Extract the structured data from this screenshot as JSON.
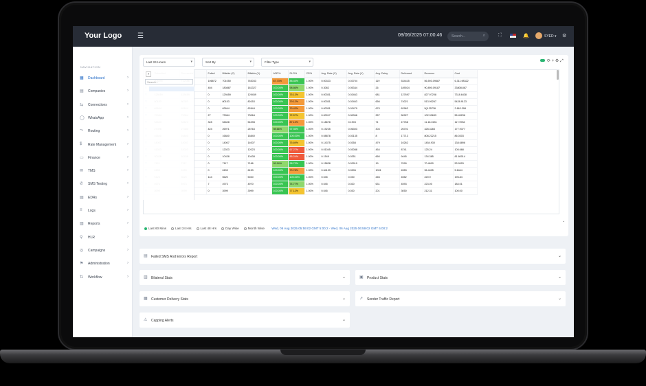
{
  "topbar": {
    "logo": "Your Logo",
    "datetime": "08/06/2025 07:00:46",
    "search_placeholder": "Search...",
    "user": "SYED"
  },
  "sidebar": {
    "heading": "NAVIGATION",
    "items": [
      {
        "label": "Dashboard",
        "icon": "dashboard-icon",
        "active": true
      },
      {
        "label": "Companies",
        "icon": "building-icon"
      },
      {
        "label": "Connections",
        "icon": "link-icon"
      },
      {
        "label": "WhatsApp",
        "icon": "chat-icon"
      },
      {
        "label": "Routing",
        "icon": "route-icon"
      },
      {
        "label": "Rate Management",
        "icon": "rate-icon"
      },
      {
        "label": "Finance",
        "icon": "finance-icon"
      },
      {
        "label": "TMS",
        "icon": "tms-icon"
      },
      {
        "label": "SMS Testing",
        "icon": "sms-icon"
      },
      {
        "label": "EDRs",
        "icon": "edr-icon"
      },
      {
        "label": "Logs",
        "icon": "log-icon"
      },
      {
        "label": "Reports",
        "icon": "report-icon"
      },
      {
        "label": "HLR",
        "icon": "hlr-icon"
      },
      {
        "label": "Campaigns",
        "icon": "campaign-icon"
      },
      {
        "label": "Administration",
        "icon": "admin-icon"
      },
      {
        "label": "Workflow",
        "icon": "workflow-icon"
      }
    ]
  },
  "filters": {
    "period": "Last 24 Hours",
    "sort": "Sort By",
    "type": "Filter Type"
  },
  "table": {
    "headers": [
      "",
      "Submitted",
      "Successful",
      "Failed",
      "Billable (C)",
      "Billable (V)",
      "ASR%",
      "DLR%",
      "CR%",
      "Avg. Rate (C)",
      "Avg. Rate (V)",
      "Avg. Delay",
      "Delivered",
      "Revenue",
      "Cost"
    ],
    "rows": [
      [
        "▽",
        "806890",
        "712456",
        "106872",
        "701050",
        "763033",
        "87.73%",
        "88.45%",
        "1.00%",
        "0.00323",
        "0.03704",
        "119",
        "534415",
        "56,593.09687",
        "6,311.98322"
      ],
      [
        "▽",
        "187717",
        "181717",
        "404",
        "180887",
        "181327",
        "100.00%",
        "98.86%",
        "1.00%",
        "0.3082",
        "0.05344",
        "26",
        "189024",
        "90,890.09187",
        "33808.867"
      ],
      [
        "▽",
        "129459",
        "129459",
        "0",
        "129459",
        "129459",
        "100.00%",
        "75.13%",
        "1.00%",
        "0.00301",
        "0.03463",
        "681",
        "127697",
        "827.97208",
        "7318.6438"
      ],
      [
        "▽",
        "80153",
        "80353",
        "0",
        "80153",
        "80153",
        "100.00%",
        "79.12%",
        "1.00%",
        "0.00301",
        "0.03463",
        "656",
        "74021",
        "513.90267",
        "5428.9123"
      ],
      [
        "▽",
        "62644",
        "62644",
        "0",
        "62644",
        "62644",
        "100.00%",
        "79.43%",
        "1.00%",
        "0.00301",
        "0.03479",
        "670",
        "62963",
        "5(9.25736",
        "2.66.1398"
      ],
      [
        "▽",
        "73064",
        "73064",
        "27",
        "73064",
        "73064",
        "100.00%",
        "72.57%",
        "1.00%",
        "0.00917",
        "0.00066",
        "257",
        "50927",
        "102.33633",
        "55.45236"
      ],
      [
        "▽",
        "54683",
        "54623",
        "345",
        "54628",
        "54298",
        "100.00%",
        "87.13%",
        "1.00%",
        "0.18678",
        "0.1903",
        "71",
        "47768",
        "11.18.0151",
        "117.9934"
      ],
      [
        "▽",
        "27396",
        "27380",
        "424",
        "26971",
        "26763",
        "98.66%",
        "97.98%",
        "1.00%",
        "0.19225",
        "0.06303",
        "304",
        "26701",
        "328.3283",
        "177.9377"
      ],
      [
        "▽",
        "16840",
        "16840",
        "0",
        "16840",
        "16840",
        "100.00%",
        "100.00%",
        "1.00%",
        "0.08878",
        "0.03135",
        "8",
        "17713",
        "808.22215",
        "86.0303"
      ],
      [
        "▽",
        "14007",
        "14007",
        "0",
        "14007",
        "14007",
        "100.00%",
        "75.69%",
        "1.00%",
        "0.14375",
        "0.0358",
        "479",
        "10262",
        "1454.930",
        "138.6896"
      ],
      [
        "▽",
        "12023",
        "12023",
        "0",
        "12023",
        "12023",
        "100.00%",
        "67.27%",
        "1.00%",
        "0.01045",
        "0.03088",
        "454",
        "8741",
        "125.24",
        "105.668"
      ],
      [
        "▽",
        "10438",
        "10438",
        "0",
        "10438",
        "10438",
        "100.00%",
        "85.24%",
        "1.00%",
        "0.1549",
        "0.0351",
        "660",
        "9445",
        "134.385",
        "81.60014"
      ],
      [
        "▽",
        "7121",
        "7117",
        "0",
        "7117",
        "7166",
        "99.94%",
        "98.73%",
        "1.00%",
        "0.15828",
        "0.03919",
        "19",
        "7099",
        "70.4600",
        "53.9929"
      ],
      [
        "▽",
        "6153",
        "6153",
        "0",
        "6153",
        "6153",
        "100.00%",
        "73.78%",
        "1.00%",
        "0.64139",
        "0.0306",
        "1001",
        "4553",
        "96.4405",
        "5.6444"
      ],
      [
        "▽",
        "5123",
        "5620",
        "144",
        "5620",
        "5020",
        "100.00%",
        "100.00%",
        "1.00%",
        "0.045",
        "0.030",
        "266",
        "4552",
        "220.9",
        "196.84"
      ],
      [
        "▽",
        "4973",
        "4973",
        "7",
        "4973",
        "4970",
        "100.00%",
        "74.77%",
        "1.00%",
        "0.045",
        "0.020",
        "631",
        "4593",
        "223.00",
        "184.01"
      ],
      [
        "▽",
        "3999",
        "3999",
        "0",
        "3999",
        "3999",
        "100.00%",
        "77.12%",
        "1.00%",
        "0.045",
        "0.030",
        "201",
        "3050",
        "212.31",
        "100.00"
      ]
    ],
    "row_colors": [
      [
        "o",
        "g"
      ],
      [
        "g",
        "lg"
      ],
      [
        "g",
        "y"
      ],
      [
        "g",
        "o"
      ],
      [
        "g",
        "o"
      ],
      [
        "g",
        "y"
      ],
      [
        "g",
        "o"
      ],
      [
        "lg",
        "g"
      ],
      [
        "g",
        "g"
      ],
      [
        "g",
        "y"
      ],
      [
        "g",
        "r"
      ],
      [
        "g",
        "r"
      ],
      [
        "lg",
        "g"
      ],
      [
        "g",
        "o"
      ],
      [
        "g",
        "g"
      ],
      [
        "g",
        "lg"
      ],
      [
        "g",
        "y"
      ]
    ],
    "filter_input_placeholder": "Search..."
  },
  "ranges": {
    "options": [
      "Last 60 Mins",
      "Last 24 Hrs",
      "Last 48 Hrs",
      "Day Wise",
      "Month Wise"
    ],
    "selected_index": 0,
    "range_text": "Wed, 06 Aug 2025 05:59:02 GMT 5:00:2 - Wed, 06 Aug 2025 06:59:02 GMT 5:00:2"
  },
  "panels": {
    "failed": "Failed SMS And Errors Report",
    "bilateral": "Bilateral Stats",
    "product": "Product Stats",
    "customer": "Customer Delivery Stats",
    "sender": "Sender Traffic Report",
    "capping": "Capping Alerts"
  },
  "colors": {
    "accent": "#2f73c9",
    "green": "#39c552",
    "topbar": "#272c36"
  }
}
